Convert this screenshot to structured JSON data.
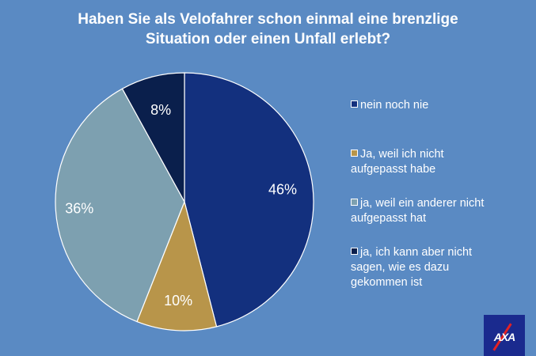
{
  "chart_data": {
    "type": "pie",
    "title": "Haben Sie als Velofahrer schon einmal eine brenzlige Situation oder einen Unfall erlebt?",
    "title_lines": [
      "Haben Sie als Velofahrer schon einmal eine brenzlige",
      "Situation oder einen Unfall erlebt?"
    ],
    "slices": [
      {
        "label": "nein noch nie",
        "legend_lines": [
          "nein noch nie"
        ],
        "value": 46,
        "value_label": "46%",
        "color": "#13307e"
      },
      {
        "label": "Ja, weil ich nicht aufgepasst habe",
        "legend_lines": [
          "Ja, weil ich nicht",
          "aufgepasst habe"
        ],
        "value": 10,
        "value_label": "10%",
        "color": "#b8954a"
      },
      {
        "label": "ja, weil ein anderer nicht aufgepasst hat",
        "legend_lines": [
          "ja, weil ein anderer nicht",
          "aufgepasst hat"
        ],
        "value": 36,
        "value_label": "36%",
        "color": "#7da0b0"
      },
      {
        "label": "ja, ich kann aber nicht sagen, wie es dazu gekommen ist",
        "legend_lines": [
          "ja, ich kann aber nicht",
          "sagen, wie es dazu",
          "gekommen ist"
        ],
        "value": 8,
        "value_label": "8%",
        "color": "#0a1f4c"
      }
    ],
    "legend_position": "right",
    "start": "top",
    "direction": "clockwise"
  },
  "logo": {
    "name": "AXA",
    "text": "AXA",
    "color": "#1a2a8e",
    "accent": "#e32124"
  },
  "background_color": "#5a8ac3"
}
